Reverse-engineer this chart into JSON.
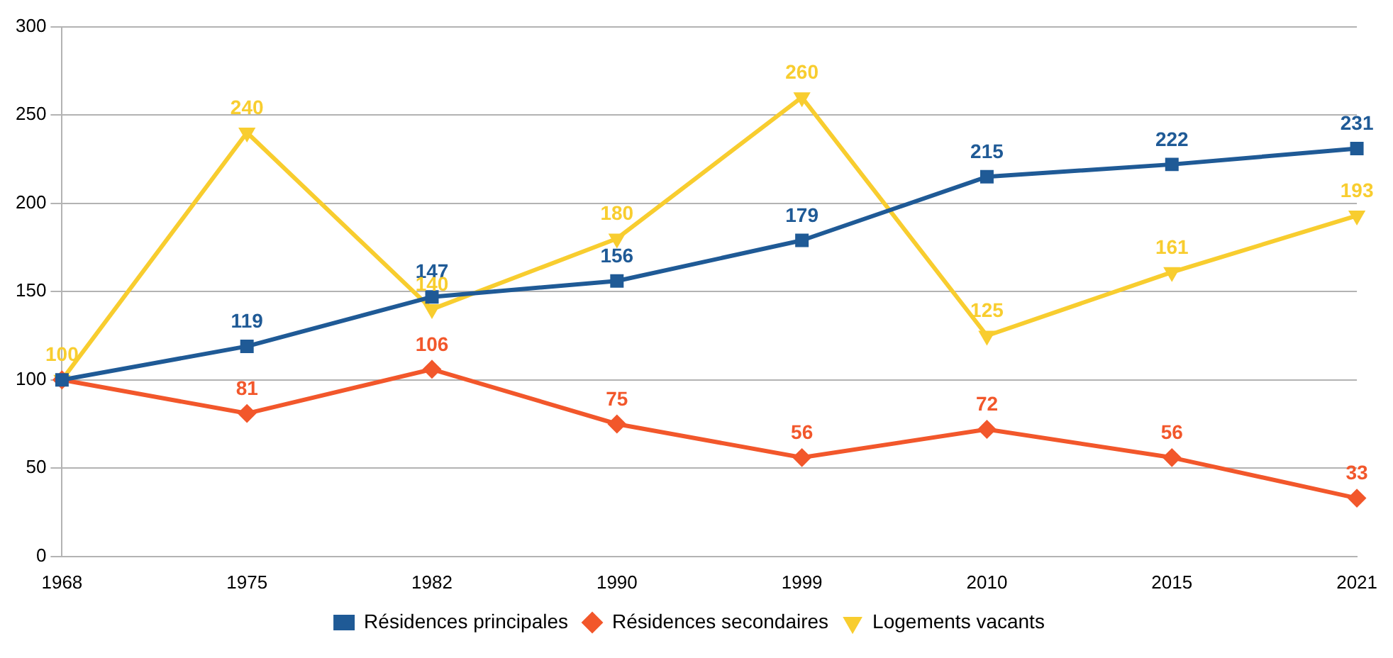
{
  "chart_data": {
    "type": "line",
    "categories": [
      "1968",
      "1975",
      "1982",
      "1990",
      "1999",
      "2010",
      "2015",
      "2021"
    ],
    "series": [
      {
        "name": "Résidences principales",
        "color": "#1f5a96",
        "marker": "square",
        "values": [
          100,
          119,
          147,
          156,
          179,
          215,
          222,
          231
        ],
        "value_labels": [
          null,
          "119",
          "147",
          "156",
          "179",
          "215",
          "222",
          "231"
        ]
      },
      {
        "name": "Résidences secondaires",
        "color": "#f2572b",
        "marker": "diamond",
        "values": [
          100,
          81,
          106,
          75,
          56,
          72,
          56,
          33
        ],
        "value_labels": [
          null,
          "81",
          "106",
          "75",
          "56",
          "72",
          "56",
          "33"
        ]
      },
      {
        "name": "Logements vacants",
        "color": "#f8cd2f",
        "marker": "triangle",
        "values": [
          100,
          240,
          140,
          180,
          260,
          125,
          161,
          193
        ],
        "value_labels": [
          "100",
          "240",
          "140",
          "180",
          "260",
          "125",
          "161",
          "193"
        ]
      }
    ],
    "ylim": [
      0,
      300
    ],
    "yticks": [
      0,
      50,
      100,
      150,
      200,
      250,
      300
    ],
    "grid": "y",
    "legend": "bottom",
    "line_style": "solid"
  }
}
